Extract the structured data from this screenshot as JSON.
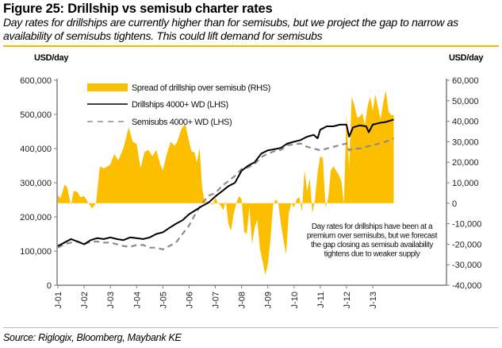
{
  "header": {
    "title": "Figure 25: Drillship vs semisub charter rates",
    "subtitle": "Day rates for drillships are currently higher than for semisubs, but we project the gap to narrow as availability of semisubs tightens. This could lift demand for semisubs"
  },
  "footer": {
    "source": "Source: Riglogix, Bloomberg, Maybank KE"
  },
  "colors": {
    "spread": "#fbbf00",
    "drillships": "#000000",
    "semisubs": "#8c8c8c",
    "axis": "#808080",
    "accent_rule": "#f3b800"
  },
  "chart_data": {
    "type": "area+line",
    "title": "Figure 25: Drillship vs semisub charter rates",
    "left_axis": {
      "label": "USD/day",
      "range": [
        0,
        600000
      ],
      "ticks": [
        0,
        100000,
        200000,
        300000,
        400000,
        500000,
        600000
      ],
      "tick_labels": [
        "0",
        "100,000",
        "200,000",
        "300,000",
        "400,000",
        "500,000",
        "600,000"
      ]
    },
    "right_axis": {
      "label": "USD/day",
      "range": [
        -40000,
        60000
      ],
      "ticks": [
        -40000,
        -30000,
        -20000,
        -10000,
        0,
        10000,
        20000,
        30000,
        40000,
        50000,
        60000
      ],
      "tick_labels": [
        "-40,000",
        "-30,000",
        "-20,000",
        "-10,000",
        "0",
        "10,000",
        "20,000",
        "30,000",
        "40,000",
        "50,000",
        "60,000"
      ]
    },
    "x_axis": {
      "range": [
        2001.0,
        2013.8
      ],
      "ticks": [
        2001,
        2002,
        2003,
        2004,
        2005,
        2006,
        2007,
        2008,
        2009,
        2010,
        2011,
        2012,
        2013
      ],
      "tick_labels": [
        "J-01",
        "J-02",
        "J-03",
        "J-04",
        "J-05",
        "J-06",
        "J-07",
        "J-08",
        "J-09",
        "J-10",
        "J-11",
        "J-12",
        "J-13"
      ]
    },
    "legend": {
      "placement": "top-left",
      "entries": [
        {
          "label": "Spread of drillship over semisub (RHS)",
          "series": "spread",
          "style": "area"
        },
        {
          "label": "Drillships 4000+ WD (LHS)",
          "series": "drillships",
          "style": "solid"
        },
        {
          "label": "Semisubs 4000+ WD (LHS)",
          "series": "semisubs",
          "style": "dashed"
        }
      ]
    },
    "annotation": [
      "Day rates for drillships have been at a",
      "premium over semisubs, but we forecast",
      "the gap closing as semisub availability",
      "tightens due to weaker supply"
    ],
    "series": [
      {
        "name": "Spread of drillship over semisub (RHS)",
        "key": "spread",
        "axis": "right",
        "x": [
          2001.0,
          2001.1,
          2001.25,
          2001.35,
          2001.5,
          2001.6,
          2001.75,
          2001.85,
          2002.0,
          2002.15,
          2002.3,
          2002.45,
          2002.6,
          2002.75,
          2002.9,
          2003.0,
          2003.15,
          2003.3,
          2003.5,
          2003.7,
          2003.85,
          2004.0,
          2004.15,
          2004.3,
          2004.45,
          2004.6,
          2004.75,
          2004.9,
          2005.0,
          2005.15,
          2005.3,
          2005.45,
          2005.55,
          2005.7,
          2005.85,
          2006.0,
          2006.1,
          2006.2,
          2006.3,
          2006.4,
          2006.5,
          2006.6,
          2006.7,
          2006.8,
          2006.9,
          2007.0,
          2007.1,
          2007.2,
          2007.3,
          2007.4,
          2007.5,
          2007.6,
          2007.7,
          2007.8,
          2007.9,
          2008.0,
          2008.1,
          2008.2,
          2008.3,
          2008.4,
          2008.5,
          2008.6,
          2008.7,
          2008.8,
          2008.9,
          2009.0,
          2009.1,
          2009.2,
          2009.3,
          2009.4,
          2009.5,
          2009.6,
          2009.7,
          2009.8,
          2009.9,
          2010.0,
          2010.1,
          2010.2,
          2010.3,
          2010.4,
          2010.5,
          2010.6,
          2010.7,
          2010.8,
          2010.9,
          2011.0,
          2011.1,
          2011.2,
          2011.3,
          2011.4,
          2011.5,
          2011.6,
          2011.7,
          2011.8,
          2011.9,
          2012.0,
          2012.1,
          2012.2,
          2012.3,
          2012.4,
          2012.5,
          2012.6,
          2012.7,
          2012.8,
          2012.9,
          2013.0,
          2013.1,
          2013.2,
          2013.3,
          2013.4,
          2013.5,
          2013.6,
          2013.7,
          2013.8
        ],
        "values": [
          4000,
          2500,
          9000,
          8000,
          -1000,
          6000,
          5500,
          3000,
          3500,
          500,
          -2500,
          0,
          18000,
          17000,
          18000,
          19000,
          24000,
          21000,
          27000,
          37000,
          30000,
          29000,
          17000,
          25000,
          26000,
          23000,
          26000,
          19000,
          16000,
          24000,
          30000,
          28000,
          30000,
          36000,
          39000,
          30000,
          25000,
          25000,
          20000,
          27000,
          7000,
          500,
          1000,
          500,
          -1000,
          3000,
          0,
          -1000,
          -3500,
          1000,
          -10000,
          -13500,
          -5000,
          0,
          3500,
          2000,
          -14000,
          -15000,
          -2000,
          -20000,
          -12000,
          -8000,
          -22000,
          -28000,
          -35000,
          -30000,
          -18000,
          -1000,
          2000,
          0,
          -10000,
          -18000,
          -25000,
          -5000,
          0,
          -2000,
          2000,
          3000,
          -4000,
          16000,
          6000,
          12000,
          -5000,
          2000,
          15000,
          23000,
          22000,
          -2000,
          2000,
          16000,
          18000,
          16000,
          14000,
          11000,
          0,
          43000,
          17000,
          52000,
          48000,
          42000,
          42000,
          44000,
          38000,
          47000,
          52000,
          45000,
          53000,
          47000,
          41000,
          49000,
          55000,
          45000,
          43000,
          43000
        ]
      },
      {
        "name": "Drillships 4000+ WD (LHS)",
        "key": "drillships",
        "axis": "left",
        "x": [
          2001.0,
          2001.25,
          2001.5,
          2001.75,
          2002.0,
          2002.25,
          2002.5,
          2002.75,
          2003.0,
          2003.25,
          2003.5,
          2003.75,
          2004.0,
          2004.25,
          2004.5,
          2004.75,
          2005.0,
          2005.25,
          2005.5,
          2005.75,
          2006.0,
          2006.25,
          2006.5,
          2006.75,
          2007.0,
          2007.25,
          2007.5,
          2007.75,
          2008.0,
          2008.25,
          2008.5,
          2008.75,
          2009.0,
          2009.25,
          2009.5,
          2009.75,
          2010.0,
          2010.25,
          2010.5,
          2010.75,
          2010.9,
          2011.0,
          2011.25,
          2011.5,
          2011.75,
          2012.0,
          2012.1,
          2012.25,
          2012.5,
          2012.75,
          2012.85,
          2013.0,
          2013.25,
          2013.5,
          2013.8
        ],
        "values": [
          115000,
          125000,
          135000,
          128000,
          120000,
          132000,
          138000,
          135000,
          140000,
          135000,
          132000,
          140000,
          138000,
          135000,
          140000,
          150000,
          155000,
          168000,
          180000,
          190000,
          208000,
          220000,
          232000,
          242000,
          260000,
          275000,
          290000,
          300000,
          335000,
          350000,
          360000,
          385000,
          395000,
          398000,
          402000,
          415000,
          420000,
          425000,
          435000,
          440000,
          430000,
          455000,
          465000,
          465000,
          470000,
          470000,
          435000,
          462000,
          468000,
          465000,
          448000,
          470000,
          475000,
          478000,
          485000
        ]
      },
      {
        "name": "Semisubs 4000+ WD (LHS)",
        "key": "semisubs",
        "axis": "left",
        "x": [
          2001.0,
          2001.25,
          2001.5,
          2001.75,
          2002.0,
          2002.25,
          2002.5,
          2002.75,
          2003.0,
          2003.25,
          2003.5,
          2003.75,
          2004.0,
          2004.25,
          2004.5,
          2004.75,
          2005.0,
          2005.25,
          2005.5,
          2005.75,
          2006.0,
          2006.25,
          2006.5,
          2006.75,
          2007.0,
          2007.25,
          2007.5,
          2007.75,
          2008.0,
          2008.25,
          2008.5,
          2008.75,
          2009.0,
          2009.25,
          2009.5,
          2009.75,
          2010.0,
          2010.25,
          2010.5,
          2010.75,
          2011.0,
          2011.25,
          2011.5,
          2011.75,
          2012.0,
          2012.1,
          2012.25,
          2012.5,
          2012.75,
          2013.0,
          2013.25,
          2013.5,
          2013.8
        ],
        "values": [
          110000,
          120000,
          125000,
          128000,
          120000,
          128000,
          128000,
          125000,
          125000,
          120000,
          115000,
          112000,
          118000,
          118000,
          110000,
          110000,
          105000,
          115000,
          125000,
          150000,
          175000,
          210000,
          240000,
          262000,
          270000,
          290000,
          305000,
          320000,
          340000,
          345000,
          355000,
          375000,
          385000,
          392000,
          396000,
          410000,
          412000,
          415000,
          405000,
          400000,
          395000,
          400000,
          405000,
          410000,
          415000,
          395000,
          400000,
          400000,
          405000,
          410000,
          415000,
          420000,
          430000
        ]
      }
    ]
  }
}
